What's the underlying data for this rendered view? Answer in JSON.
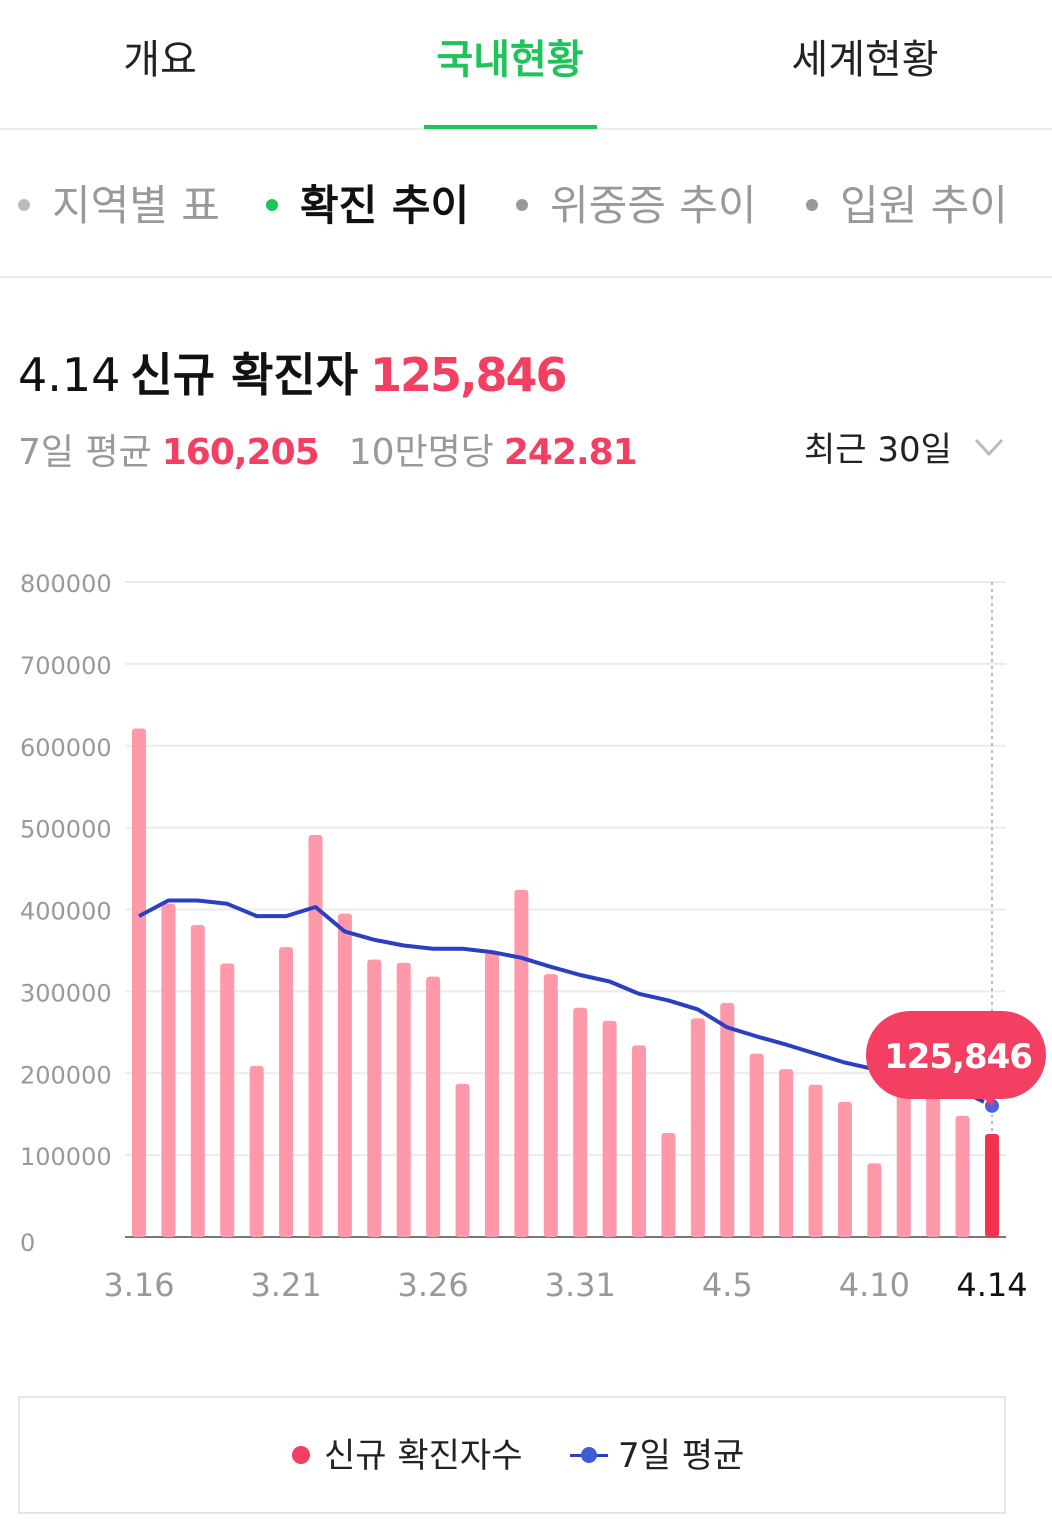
{
  "tabs": [
    {
      "label": "개요",
      "active": false
    },
    {
      "label": "국내현황",
      "active": true
    },
    {
      "label": "세계현황",
      "active": false
    }
  ],
  "subtabs": [
    {
      "label": "지역별 표",
      "active": false
    },
    {
      "label": "확진 추이",
      "active": true
    },
    {
      "label": "위중증 추이",
      "active": false
    },
    {
      "label": "입원 추이",
      "active": false
    }
  ],
  "headline": {
    "date": "4.14",
    "label": "신규 확진자",
    "value": "125,846"
  },
  "substats": {
    "avg_label": "7일 평균",
    "avg_value": "160,205",
    "per_label": "10만명당",
    "per_value": "242.81"
  },
  "range_selector": "최근 30일",
  "colors": {
    "accent_green": "#1ec35a",
    "bar_pink": "#ff98a8",
    "bar_highlight": "#f2334f",
    "line_blue": "#2b3fc2",
    "value_red": "#f23f62"
  },
  "legend": {
    "bars_label": "신규 확진자수",
    "line_label": "7일 평균"
  },
  "chart_data": {
    "type": "bar",
    "x": [
      "3.16",
      "3.17",
      "3.18",
      "3.19",
      "3.20",
      "3.21",
      "3.22",
      "3.23",
      "3.24",
      "3.25",
      "3.26",
      "3.27",
      "3.28",
      "3.29",
      "3.30",
      "3.31",
      "4.1",
      "4.2",
      "4.3",
      "4.4",
      "4.5",
      "4.6",
      "4.7",
      "4.8",
      "4.9",
      "4.10",
      "4.11",
      "4.12",
      "4.13",
      "4.14"
    ],
    "x_tick_labels": [
      "3.16",
      "3.21",
      "3.26",
      "3.31",
      "4.5",
      "4.10",
      "4.14"
    ],
    "series": [
      {
        "name": "신규 확진자수",
        "type": "bar",
        "values": [
          621000,
          407000,
          381000,
          334000,
          209000,
          354000,
          491000,
          395000,
          339000,
          335000,
          318000,
          187000,
          348000,
          424000,
          321000,
          280000,
          264000,
          234000,
          127000,
          267000,
          286000,
          224000,
          205000,
          186000,
          165000,
          90000,
          210000,
          195000,
          148000,
          125846
        ]
      },
      {
        "name": "7일 평균",
        "type": "line",
        "values": [
          392000,
          411000,
          411000,
          407000,
          392000,
          392000,
          403000,
          373000,
          363000,
          356000,
          352000,
          352000,
          348000,
          341000,
          330000,
          320000,
          312000,
          297000,
          289000,
          278000,
          256000,
          245000,
          235000,
          224000,
          213000,
          205000,
          203000,
          190000,
          178000,
          160205
        ]
      }
    ],
    "y_ticks": [
      "0",
      "100000",
      "200000",
      "300000",
      "400000",
      "500000",
      "600000",
      "700000",
      "800000"
    ],
    "ylim": [
      0,
      800000
    ],
    "grid": true,
    "tooltip": {
      "x": "4.14",
      "value": "125,846"
    }
  }
}
